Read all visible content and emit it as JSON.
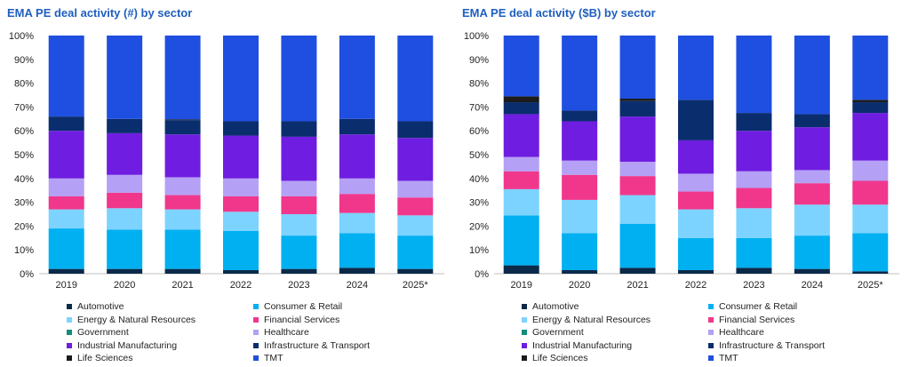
{
  "colors": {
    "Automotive": "#0b2a4a",
    "Consumer & Retail": "#00b0f0",
    "Energy & Natural Resources": "#7dd3ff",
    "Financial Services": "#f0378c",
    "Government": "#138c7c",
    "Healthcare": "#b4a0f5",
    "Industrial Manufacturing": "#6f1de0",
    "Infrastructure & Transport": "#0a2d6e",
    "Life Sciences": "#1b1b1b",
    "TMT": "#1f4fe0"
  },
  "legend": [
    "Automotive",
    "Consumer & Retail",
    "Energy & Natural Resources",
    "Financial Services",
    "Government",
    "Healthcare",
    "Industrial Manufacturing",
    "Infrastructure & Transport",
    "Life Sciences",
    "TMT"
  ],
  "chart_data": [
    {
      "type": "bar",
      "stacked": true,
      "title": "EMA PE deal activity (#) by sector",
      "categories": [
        "2019",
        "2020",
        "2021",
        "2022",
        "2023",
        "2024",
        "2025*"
      ],
      "yticks": [
        "0%",
        "10%",
        "20%",
        "30%",
        "40%",
        "50%",
        "60%",
        "70%",
        "80%",
        "90%",
        "100%"
      ],
      "ylim": [
        0,
        100
      ],
      "series": [
        {
          "name": "Automotive",
          "values": [
            2,
            2,
            2,
            1.5,
            2,
            2.5,
            2
          ]
        },
        {
          "name": "Consumer & Retail",
          "values": [
            17,
            16.5,
            16.5,
            16.5,
            14,
            14.5,
            14
          ]
        },
        {
          "name": "Energy & Natural Resources",
          "values": [
            8,
            9,
            8.5,
            8,
            9,
            8.5,
            8.5
          ]
        },
        {
          "name": "Financial Services",
          "values": [
            5.5,
            6.5,
            6,
            6.5,
            7.5,
            8,
            7.5
          ]
        },
        {
          "name": "Government",
          "values": [
            0,
            0,
            0,
            0,
            0,
            0,
            0
          ]
        },
        {
          "name": "Healthcare",
          "values": [
            7.5,
            7.5,
            7.5,
            7.5,
            6.5,
            6.5,
            7
          ]
        },
        {
          "name": "Industrial Manufacturing",
          "values": [
            20,
            17.5,
            18,
            18,
            18.5,
            18.5,
            18
          ]
        },
        {
          "name": "Infrastructure & Transport",
          "values": [
            6,
            6,
            6,
            6,
            6.5,
            6.5,
            7
          ]
        },
        {
          "name": "Life Sciences",
          "values": [
            0,
            0,
            0.3,
            0,
            0,
            0,
            0
          ]
        },
        {
          "name": "TMT",
          "values": [
            34,
            35,
            35.2,
            36,
            36,
            35,
            36
          ]
        }
      ]
    },
    {
      "type": "bar",
      "stacked": true,
      "title": "EMA PE deal activity ($B) by sector",
      "categories": [
        "2019",
        "2020",
        "2021",
        "2022",
        "2023",
        "2024",
        "2025*"
      ],
      "yticks": [
        "0%",
        "10%",
        "20%",
        "30%",
        "40%",
        "50%",
        "60%",
        "70%",
        "80%",
        "90%",
        "100%"
      ],
      "ylim": [
        0,
        100
      ],
      "series": [
        {
          "name": "Automotive",
          "values": [
            3.5,
            1.5,
            2.5,
            1.5,
            2.5,
            2,
            1
          ]
        },
        {
          "name": "Consumer & Retail",
          "values": [
            21,
            15.5,
            18.5,
            13.5,
            12.5,
            14,
            16
          ]
        },
        {
          "name": "Energy & Natural Resources",
          "values": [
            11,
            14,
            12,
            12,
            12.5,
            13,
            12
          ]
        },
        {
          "name": "Financial Services",
          "values": [
            7.5,
            10.5,
            8,
            7.5,
            8.5,
            9,
            10
          ]
        },
        {
          "name": "Government",
          "values": [
            0,
            0,
            0,
            0,
            0,
            0,
            0
          ]
        },
        {
          "name": "Healthcare",
          "values": [
            6,
            6,
            6,
            7.5,
            7,
            5.5,
            8.5
          ]
        },
        {
          "name": "Industrial Manufacturing",
          "values": [
            18,
            16.5,
            19,
            14,
            17,
            18,
            20
          ]
        },
        {
          "name": "Infrastructure & Transport",
          "values": [
            5,
            4.5,
            6.5,
            17,
            7.5,
            5.5,
            4.5
          ]
        },
        {
          "name": "Life Sciences",
          "values": [
            2.5,
            0,
            1,
            0,
            0,
            0,
            1
          ]
        },
        {
          "name": "TMT",
          "values": [
            25.5,
            31.5,
            26.5,
            27,
            32.5,
            33,
            27
          ]
        }
      ]
    }
  ]
}
